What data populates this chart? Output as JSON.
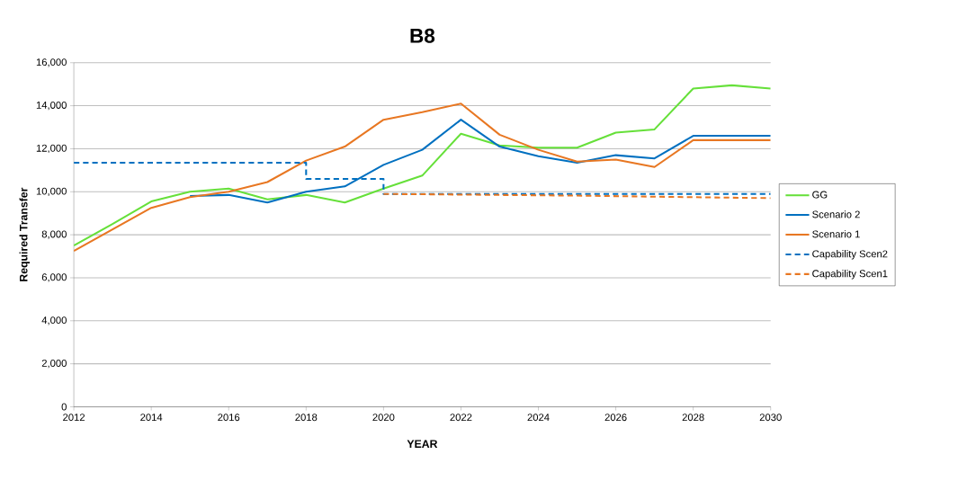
{
  "chart_data": {
    "type": "line",
    "title": "B8",
    "xlabel": "YEAR",
    "ylabel": "Required Transfer",
    "x": [
      2012,
      2013,
      2014,
      2015,
      2016,
      2017,
      2018,
      2019,
      2020,
      2021,
      2022,
      2023,
      2024,
      2025,
      2026,
      2027,
      2028,
      2029,
      2030
    ],
    "series": [
      {
        "name": "GG",
        "color": "#66e03a",
        "values": [
          7500,
          8500,
          9550,
          10000,
          10150,
          9650,
          9850,
          9500,
          10150,
          10750,
          12700,
          12150,
          12050,
          12050,
          12750,
          12900,
          14800,
          14950,
          14800
        ]
      },
      {
        "name": "Scenario 2",
        "color": "#0070c0",
        "values": [
          null,
          null,
          null,
          9800,
          9850,
          9500,
          10000,
          10250,
          11250,
          11950,
          13350,
          12100,
          11650,
          11350,
          11700,
          11550,
          12600,
          12600,
          12600
        ]
      },
      {
        "name": "Scenario 1",
        "color": "#e87722",
        "values": [
          7250,
          8250,
          9250,
          9750,
          10000,
          10450,
          11450,
          12100,
          13350,
          13700,
          14100,
          12650,
          11950,
          11400,
          11500,
          11150,
          12400,
          12400,
          12400
        ]
      },
      {
        "name": "Capability Scen2",
        "color": "#0070c0",
        "line_style": "dashed",
        "x": [
          2012,
          2018,
          2018,
          2020,
          2020,
          2030
        ],
        "values": [
          11350,
          11350,
          10600,
          10600,
          9900,
          9900
        ]
      },
      {
        "name": "Capability Scen1",
        "color": "#e87722",
        "line_style": "dashed",
        "x": [
          2020,
          2025,
          2030
        ],
        "values": [
          9900,
          9820,
          9700
        ]
      }
    ],
    "xlim": [
      2012,
      2030
    ],
    "xticks": [
      2012,
      2014,
      2016,
      2018,
      2020,
      2022,
      2024,
      2026,
      2028,
      2030
    ],
    "ylim": [
      0,
      16000
    ],
    "yticks": [
      {
        "value": 0,
        "label": "0"
      },
      {
        "value": 2000,
        "label": "2,000"
      },
      {
        "value": 4000,
        "label": "4,000"
      },
      {
        "value": 6000,
        "label": "6,000"
      },
      {
        "value": 8000,
        "label": "8,000"
      },
      {
        "value": 10000,
        "label": "10,000"
      },
      {
        "value": 12000,
        "label": "12,000"
      },
      {
        "value": 14000,
        "label": "14,000"
      },
      {
        "value": 16000,
        "label": "16,000"
      }
    ],
    "grid": "y",
    "legend": "right",
    "line_style": "solid",
    "marker": "none"
  }
}
